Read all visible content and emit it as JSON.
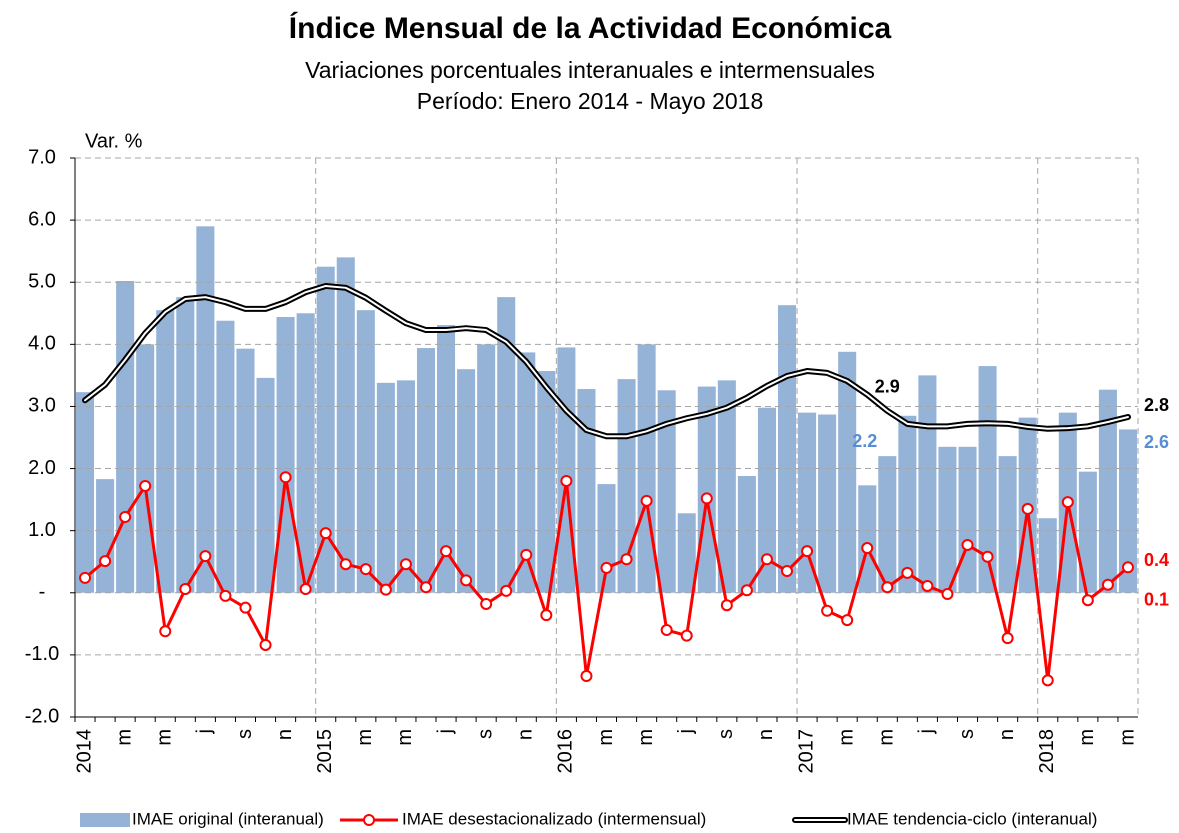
{
  "chart_data": {
    "type": "bar-line",
    "title": "Índice Mensual de la Actividad Económica",
    "subtitle": "Variaciones porcentuales interanuales e intermensuales",
    "period": "Período: Enero 2014 - Mayo 2018",
    "y_label": "Var. %",
    "categories": [
      "2014",
      null,
      "m",
      null,
      "m",
      null,
      "j",
      null,
      "s",
      null,
      "n",
      null,
      "2015",
      null,
      "m",
      null,
      "m",
      null,
      "j",
      null,
      "s",
      null,
      "n",
      null,
      "2016",
      null,
      "m",
      null,
      "m",
      null,
      "j",
      null,
      "s",
      null,
      "n",
      null,
      "2017",
      null,
      "m",
      null,
      "m",
      null,
      "j",
      null,
      "s",
      null,
      "n",
      null,
      "2018",
      null,
      "m",
      null,
      "m"
    ],
    "ylim": [
      -2,
      7
    ],
    "yticks": [
      {
        "value": -2,
        "label": "-2.0"
      },
      {
        "value": -1,
        "label": "-1.0"
      },
      {
        "value": 0,
        "label": "-"
      },
      {
        "value": 1,
        "label": "1.0"
      },
      {
        "value": 2,
        "label": "2.0"
      },
      {
        "value": 3,
        "label": "3.0"
      },
      {
        "value": 4,
        "label": "4.0"
      },
      {
        "value": 5,
        "label": "5.0"
      },
      {
        "value": 6,
        "label": "6.0"
      },
      {
        "value": 7,
        "label": "7.0"
      }
    ],
    "grid": true,
    "series": [
      {
        "name": "IMAE original (interanual)",
        "kind": "bar",
        "color": "#95b3d7",
        "label_color": "#558ed5",
        "values": [
          3.23,
          1.83,
          5.02,
          4.0,
          4.55,
          4.76,
          5.9,
          4.38,
          3.93,
          3.46,
          4.44,
          4.5,
          5.25,
          5.4,
          4.55,
          3.38,
          3.42,
          3.94,
          4.31,
          3.6,
          4.0,
          4.76,
          3.87,
          3.57,
          3.95,
          3.28,
          1.75,
          3.44,
          4.0,
          3.26,
          1.28,
          3.32,
          3.42,
          1.88,
          2.98,
          4.63,
          2.9,
          2.87,
          3.88,
          1.73,
          2.2,
          2.85,
          3.5,
          2.35,
          2.35,
          3.65,
          2.2,
          2.82,
          1.2,
          2.9,
          1.95,
          3.27,
          2.63
        ],
        "value_labels": [
          null,
          null,
          null,
          null,
          null,
          null,
          null,
          null,
          null,
          null,
          null,
          null,
          null,
          null,
          null,
          null,
          null,
          null,
          null,
          null,
          null,
          null,
          null,
          null,
          null,
          null,
          null,
          null,
          null,
          null,
          null,
          null,
          null,
          null,
          null,
          null,
          null,
          null,
          null,
          null,
          "2.2",
          null,
          null,
          null,
          null,
          null,
          null,
          null,
          null,
          null,
          null,
          null,
          "2.6"
        ]
      },
      {
        "name": "IMAE desestacionalizado (intermensual)",
        "kind": "line-marker",
        "color": "#ff0000",
        "label_color": "#ff0000",
        "values": [
          0.24,
          0.51,
          1.22,
          1.72,
          -0.62,
          0.06,
          0.59,
          -0.05,
          -0.24,
          -0.84,
          1.86,
          0.06,
          0.96,
          0.46,
          0.38,
          0.05,
          0.46,
          0.09,
          0.67,
          0.2,
          -0.18,
          0.03,
          0.61,
          -0.36,
          1.8,
          -1.34,
          0.4,
          0.54,
          1.48,
          -0.6,
          -0.69,
          1.52,
          -0.2,
          0.04,
          0.54,
          0.35,
          0.67,
          -0.29,
          -0.44,
          0.72,
          0.09,
          0.32,
          0.11,
          -0.02,
          0.77,
          0.58,
          -0.73,
          1.35,
          -1.41,
          1.46,
          -0.12,
          0.13,
          0.41
        ],
        "value_labels": [
          null,
          null,
          null,
          null,
          null,
          null,
          null,
          null,
          null,
          null,
          null,
          null,
          null,
          null,
          null,
          null,
          null,
          null,
          null,
          null,
          null,
          null,
          null,
          null,
          null,
          null,
          null,
          null,
          null,
          null,
          null,
          null,
          null,
          null,
          null,
          null,
          null,
          null,
          null,
          null,
          null,
          null,
          null,
          null,
          null,
          null,
          null,
          null,
          null,
          null,
          null,
          "0.1",
          "0.4"
        ]
      },
      {
        "name": "IMAE tendencia-ciclo (interanual)",
        "kind": "double-line",
        "color": "#000000",
        "label_color": "#000000",
        "values": [
          3.1,
          3.35,
          3.75,
          4.18,
          4.52,
          4.73,
          4.76,
          4.68,
          4.57,
          4.57,
          4.68,
          4.84,
          4.94,
          4.91,
          4.75,
          4.54,
          4.34,
          4.23,
          4.23,
          4.26,
          4.23,
          4.04,
          3.72,
          3.31,
          2.93,
          2.62,
          2.52,
          2.52,
          2.6,
          2.72,
          2.81,
          2.88,
          2.98,
          3.14,
          3.33,
          3.49,
          3.57,
          3.54,
          3.41,
          3.19,
          2.93,
          2.72,
          2.68,
          2.68,
          2.72,
          2.73,
          2.72,
          2.67,
          2.64,
          2.65,
          2.68,
          2.75,
          2.83
        ],
        "value_labels": [
          null,
          null,
          null,
          null,
          null,
          null,
          null,
          null,
          null,
          null,
          null,
          null,
          null,
          null,
          null,
          null,
          null,
          null,
          null,
          null,
          null,
          null,
          null,
          null,
          null,
          null,
          null,
          null,
          null,
          null,
          null,
          null,
          null,
          null,
          null,
          null,
          null,
          null,
          null,
          null,
          "2.9",
          null,
          null,
          null,
          null,
          null,
          null,
          null,
          null,
          null,
          null,
          null,
          "2.8"
        ]
      }
    ]
  }
}
